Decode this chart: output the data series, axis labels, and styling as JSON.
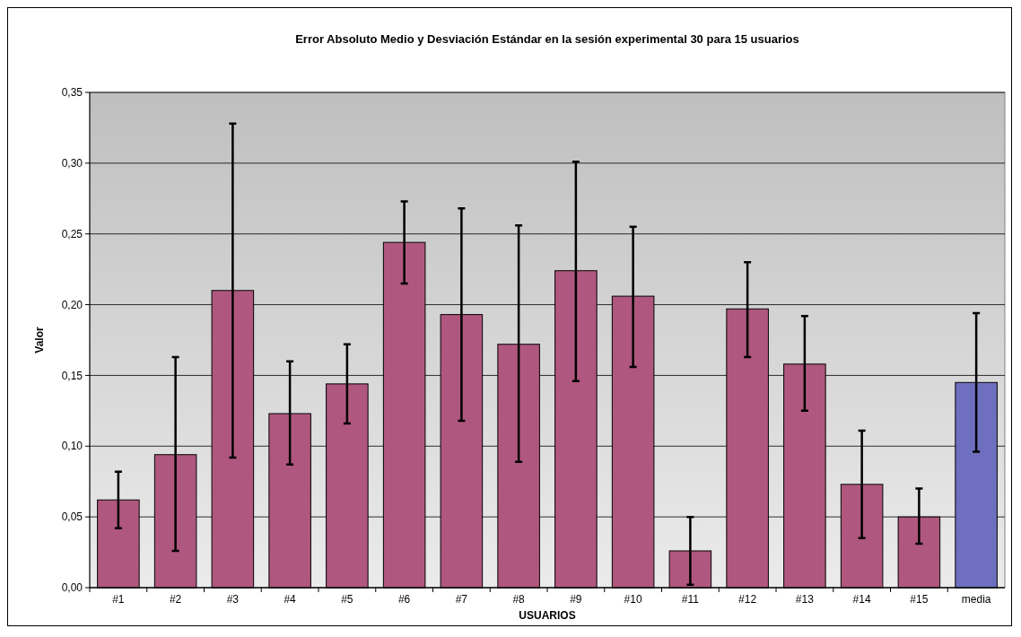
{
  "chart_data": {
    "type": "bar",
    "title": "Error Absoluto Medio y Desviación Estándar en la sesión experimental 30 para 15 usuarios",
    "xlabel": "USUARIOS",
    "ylabel": "Valor",
    "categories": [
      "#1",
      "#2",
      "#3",
      "#4",
      "#5",
      "#6",
      "#7",
      "#8",
      "#9",
      "#10",
      "#11",
      "#12",
      "#13",
      "#14",
      "#15",
      "media"
    ],
    "values": [
      0.062,
      0.094,
      0.21,
      0.123,
      0.144,
      0.244,
      0.193,
      0.172,
      0.224,
      0.206,
      0.026,
      0.197,
      0.158,
      0.073,
      0.05,
      0.145
    ],
    "errors": [
      [
        0.042,
        0.082
      ],
      [
        0.026,
        0.163
      ],
      [
        0.092,
        0.328
      ],
      [
        0.087,
        0.16
      ],
      [
        0.116,
        0.172
      ],
      [
        0.215,
        0.273
      ],
      [
        0.118,
        0.268
      ],
      [
        0.089,
        0.256
      ],
      [
        0.146,
        0.301
      ],
      [
        0.156,
        0.255
      ],
      [
        0.002,
        0.05
      ],
      [
        0.163,
        0.23
      ],
      [
        0.125,
        0.192
      ],
      [
        0.035,
        0.111
      ],
      [
        0.031,
        0.07
      ],
      [
        0.096,
        0.194
      ]
    ],
    "colors": [
      "#b0577f",
      "#b0577f",
      "#b0577f",
      "#b0577f",
      "#b0577f",
      "#b0577f",
      "#b0577f",
      "#b0577f",
      "#b0577f",
      "#b0577f",
      "#b0577f",
      "#b0577f",
      "#b0577f",
      "#b0577f",
      "#b0577f",
      "#6f6fbf"
    ],
    "ylim": [
      0,
      0.35
    ],
    "yticks": [
      {
        "value": 0,
        "label": "0,00"
      },
      {
        "value": 0.05,
        "label": "0,05"
      },
      {
        "value": 0.1,
        "label": "0,10"
      },
      {
        "value": 0.15,
        "label": "0,15"
      },
      {
        "value": 0.2,
        "label": "0,20"
      },
      {
        "value": 0.25,
        "label": "0,25"
      },
      {
        "value": 0.3,
        "label": "0,30"
      },
      {
        "value": 0.35,
        "label": "0,35"
      }
    ],
    "grid": "y"
  }
}
